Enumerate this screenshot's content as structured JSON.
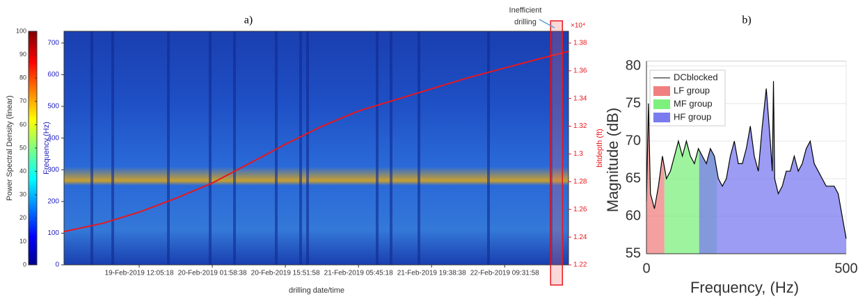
{
  "chart_data": [
    {
      "type": "spectrogram",
      "title": "a)",
      "xlabel": "drilling date/time",
      "ylabel": "Frequency (Hz)",
      "y2label": "bitdepth (ft)",
      "y2_multiplier": "×10⁴",
      "xlim": [
        "2019-02-18T21:48:00",
        "2019-02-22T21:40:00"
      ],
      "xticks": [
        {
          "value": "2019-02-19T12:05:18",
          "label": "19-Feb-2019 12:05:18"
        },
        {
          "value": "2019-02-20T01:58:38",
          "label": "20-Feb-2019 01:58:38"
        },
        {
          "value": "2019-02-20T15:51:58",
          "label": "20-Feb-2019 15:51:58"
        },
        {
          "value": "2019-02-21T05:45:18",
          "label": "21-Feb-2019 05:45:18"
        },
        {
          "value": "2019-02-21T19:38:38",
          "label": "21-Feb-2019 19:38:38"
        },
        {
          "value": "2019-02-22T09:31:58",
          "label": "22-Feb-2019 09:31:58"
        }
      ],
      "ylim": [
        0,
        737
      ],
      "yticks": [
        0,
        100,
        200,
        300,
        400,
        500,
        600,
        700
      ],
      "y2lim": [
        1.22,
        1.3885
      ],
      "y2ticks": [
        1.22,
        1.24,
        1.26,
        1.28,
        1.3,
        1.32,
        1.34,
        1.36,
        1.38
      ],
      "colorbar": {
        "label": "Power Spectral Density (linear)",
        "lim": [
          0,
          100
        ],
        "ticks": [
          0,
          10,
          20,
          30,
          40,
          50,
          60,
          70,
          80,
          90,
          100
        ]
      },
      "series": [
        {
          "color": "#e8171c",
          "axis": "y2",
          "x": [
            "2019-02-18T21:48:00",
            "2019-02-19T05:08:38",
            "2019-02-19T12:05:18",
            "2019-02-19T19:01:58",
            "2019-02-20T01:58:38",
            "2019-02-20T08:55:18",
            "2019-02-20T15:51:58",
            "2019-02-20T22:48:38",
            "2019-02-21T05:45:18",
            "2019-02-21T12:41:58",
            "2019-02-21T19:38:38",
            "2019-02-22T02:35:18",
            "2019-02-22T09:31:58",
            "2019-02-22T16:28:38",
            "2019-02-22T21:40:00"
          ],
          "values": [
            1.244,
            1.25,
            1.258,
            1.268,
            1.279,
            1.293,
            1.307,
            1.32,
            1.331,
            1.339,
            1.347,
            1.355,
            1.362,
            1.369,
            1.374
          ]
        }
      ],
      "annotation": {
        "text_lines": [
          "Inefficient",
          "drilling"
        ],
        "highlight_x": [
          "2019-02-22T18:15:48",
          "2019-02-22T20:30:42"
        ]
      }
    },
    {
      "type": "area",
      "title": "b)",
      "xlabel": "Frequency, (Hz)",
      "ylabel": "Magnitude (dB)",
      "xlim": [
        0,
        500
      ],
      "xticks": [
        0,
        500
      ],
      "ylim": [
        55,
        80
      ],
      "yticks": [
        55,
        60,
        65,
        70,
        75,
        80
      ],
      "grid": true,
      "legend": "upper left",
      "x": [
        0,
        5,
        10,
        20,
        30,
        40,
        50,
        60,
        70,
        80,
        90,
        100,
        110,
        120,
        130,
        140,
        150,
        160,
        170,
        180,
        190,
        200,
        210,
        220,
        230,
        240,
        250,
        260,
        270,
        280,
        290,
        300,
        310,
        315,
        318,
        321,
        330,
        340,
        350,
        360,
        370,
        380,
        390,
        400,
        410,
        420,
        430,
        440,
        450,
        460,
        470,
        480,
        490,
        500
      ],
      "series": [
        {
          "name": "DCblocked",
          "color": "#000000",
          "values": [
            62,
            75,
            63,
            61,
            64,
            68,
            65,
            66,
            68,
            70,
            68,
            70,
            68,
            67,
            69,
            68,
            67,
            69,
            68,
            65,
            64,
            65,
            68,
            70,
            67,
            67,
            69,
            72,
            68,
            66,
            72,
            77,
            70,
            66,
            78,
            65,
            63,
            64,
            66,
            66,
            68,
            66,
            67,
            69,
            70,
            67,
            66,
            65,
            64,
            64,
            64,
            63,
            60,
            57
          ]
        },
        {
          "name": "LF group",
          "color": "#f08080",
          "range": [
            0,
            45
          ]
        },
        {
          "name": "MF group",
          "color": "#7ef07e",
          "range": [
            45,
            176
          ]
        },
        {
          "name": "HF group",
          "color": "#7b7bf0",
          "range": [
            132,
            500
          ]
        }
      ]
    }
  ]
}
